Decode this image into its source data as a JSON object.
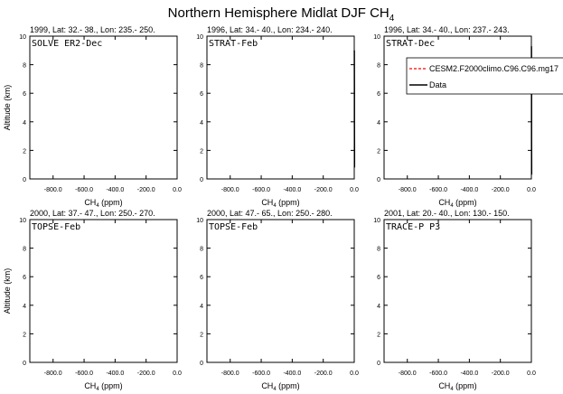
{
  "figure": {
    "title_main": "Northern Hemisphere Midlat DJF CH",
    "title_sub": "4"
  },
  "colors": {
    "model_line": "#ff0000",
    "data_line": "#000000"
  },
  "chart_data": [
    {
      "type": "line",
      "header": "1999, Lat: 32.- 38., Lon: 235.- 250.",
      "campaign": "SOLVE ER2-Dec",
      "xlabel_main": "CH",
      "xlabel_sub": "4",
      "xlabel_unit": " (ppm)",
      "ylabel": "Altitude (km)",
      "xlim": [
        -950,
        0
      ],
      "ylim": [
        0,
        10
      ],
      "xticks": [
        "-800.0",
        "-600.0",
        "-400.0",
        "-200.0",
        "0.0"
      ],
      "yticks": [
        "0",
        "2",
        "4",
        "6",
        "8",
        "10"
      ],
      "series": [
        {
          "name": "CESM2.F2000climo.C96.C96.mg17",
          "x": [],
          "y": []
        },
        {
          "name": "Data",
          "x": [],
          "y": []
        }
      ]
    },
    {
      "type": "line",
      "header": "1996, Lat: 34.- 40., Lon: 234.- 240.",
      "campaign": "STRAT-Feb",
      "xlabel_main": "CH",
      "xlabel_sub": "4",
      "xlabel_unit": " (ppm)",
      "ylabel": "",
      "xlim": [
        -950,
        0
      ],
      "ylim": [
        0,
        10
      ],
      "xticks": [
        "-800.0",
        "-600.0",
        "-400.0",
        "-200.0",
        "0.0"
      ],
      "yticks": [
        "0",
        "2",
        "4",
        "6",
        "8",
        "10"
      ],
      "series": [
        {
          "name": "CESM2.F2000climo.C96.C96.mg17",
          "x": [],
          "y": []
        },
        {
          "name": "Data",
          "x": [
            1.7,
            1.6,
            1.4,
            1.0,
            0.6
          ],
          "y": [
            0.8,
            2.0,
            4.0,
            6.5,
            9.0
          ]
        }
      ]
    },
    {
      "type": "line",
      "header": "1996, Lat: 34.- 40., Lon: 237.- 243.",
      "campaign": "STRAT-Dec",
      "xlabel_main": "CH",
      "xlabel_sub": "4",
      "xlabel_unit": " (ppm)",
      "ylabel": "",
      "xlim": [
        -950,
        0
      ],
      "ylim": [
        0,
        10
      ],
      "xticks": [
        "-800.0",
        "-600.0",
        "-400.0",
        "-200.0",
        "0.0"
      ],
      "yticks": [
        "0",
        "2",
        "4",
        "6",
        "8",
        "10"
      ],
      "legend": {
        "position": "top-right"
      },
      "series": [
        {
          "name": "CESM2.F2000climo.C96.C96.mg17",
          "x": [],
          "y": []
        },
        {
          "name": "Data",
          "x": [
            1.7,
            1.5,
            1.2,
            0.9,
            0.7
          ],
          "y": [
            0.3,
            1.0,
            3.0,
            6.0,
            9.3
          ]
        }
      ]
    },
    {
      "type": "line",
      "header": "2000, Lat: 37.- 47., Lon: 250.- 270.",
      "campaign": "TOPSE-Feb",
      "xlabel_main": "CH",
      "xlabel_sub": "4",
      "xlabel_unit": " (ppm)",
      "ylabel": "Altitude (km)",
      "xlim": [
        -950,
        0
      ],
      "ylim": [
        0,
        10
      ],
      "xticks": [
        "-800.0",
        "-600.0",
        "-400.0",
        "-200.0",
        "0.0"
      ],
      "yticks": [
        "0",
        "2",
        "4",
        "6",
        "8",
        "10"
      ],
      "series": [
        {
          "name": "CESM2.F2000climo.C96.C96.mg17",
          "x": [],
          "y": []
        },
        {
          "name": "Data",
          "x": [],
          "y": []
        }
      ]
    },
    {
      "type": "line",
      "header": "2000, Lat: 47.- 65., Lon: 250.- 280.",
      "campaign": "TOPSE-Feb",
      "xlabel_main": "CH",
      "xlabel_sub": "4",
      "xlabel_unit": " (ppm)",
      "ylabel": "",
      "xlim": [
        -950,
        0
      ],
      "ylim": [
        0,
        10
      ],
      "xticks": [
        "-800.0",
        "-600.0",
        "-400.0",
        "-200.0",
        "0.0"
      ],
      "yticks": [
        "0",
        "2",
        "4",
        "6",
        "8",
        "10"
      ],
      "series": [
        {
          "name": "CESM2.F2000climo.C96.C96.mg17",
          "x": [],
          "y": []
        },
        {
          "name": "Data",
          "x": [],
          "y": []
        }
      ]
    },
    {
      "type": "line",
      "header": "2001, Lat: 20.- 40., Lon: 130.- 150.",
      "campaign": "TRACE-P P3",
      "xlabel_main": "CH",
      "xlabel_sub": "4",
      "xlabel_unit": " (ppm)",
      "ylabel": "",
      "xlim": [
        -950,
        0
      ],
      "ylim": [
        0,
        10
      ],
      "xticks": [
        "-800.0",
        "-600.0",
        "-400.0",
        "-200.0",
        "0.0"
      ],
      "yticks": [
        "0",
        "2",
        "4",
        "6",
        "8",
        "10"
      ],
      "series": [
        {
          "name": "CESM2.F2000climo.C96.C96.mg17",
          "x": [],
          "y": []
        },
        {
          "name": "Data",
          "x": [],
          "y": []
        }
      ]
    }
  ]
}
